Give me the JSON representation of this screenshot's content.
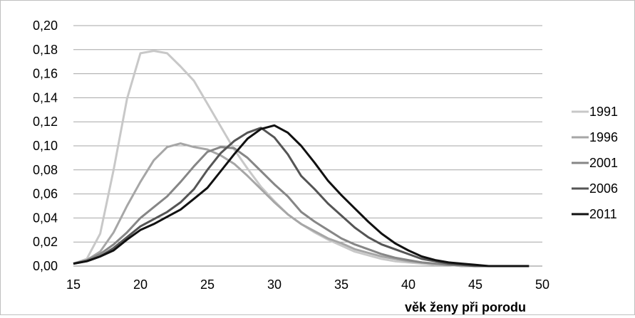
{
  "chart_data": {
    "type": "line",
    "title": "",
    "xlabel": "věk ženy při porodu",
    "ylabel": "",
    "xlim": [
      15,
      50
    ],
    "ylim": [
      0,
      0.2
    ],
    "x_ticks": [
      15,
      20,
      25,
      30,
      35,
      40,
      45,
      50
    ],
    "y_ticks": [
      0,
      0.02,
      0.04,
      0.06,
      0.08,
      0.1,
      0.12,
      0.14,
      0.16,
      0.18,
      0.2
    ],
    "x_tick_labels": [
      "15",
      "20",
      "25",
      "30",
      "35",
      "40",
      "45",
      "50"
    ],
    "y_tick_labels": [
      "0,00",
      "0,02",
      "0,04",
      "0,06",
      "0,08",
      "0,10",
      "0,12",
      "0,14",
      "0,16",
      "0,18",
      "0,20"
    ],
    "grid": "horizontal",
    "legend_position": "right",
    "x": [
      15,
      16,
      17,
      18,
      19,
      20,
      21,
      22,
      23,
      24,
      25,
      26,
      27,
      28,
      29,
      30,
      31,
      32,
      33,
      34,
      35,
      36,
      37,
      38,
      39,
      40,
      41,
      42,
      43,
      44,
      45,
      46,
      47,
      48,
      49
    ],
    "series": [
      {
        "name": "1991",
        "color": "#c8c8c8",
        "values": [
          0.002,
          0.006,
          0.027,
          0.08,
          0.139,
          0.177,
          0.179,
          0.177,
          0.166,
          0.154,
          0.135,
          0.116,
          0.097,
          0.081,
          0.066,
          0.054,
          0.043,
          0.035,
          0.028,
          0.022,
          0.017,
          0.012,
          0.009,
          0.006,
          0.004,
          0.003,
          0.002,
          0.001,
          0.001,
          0,
          0,
          0,
          0,
          0,
          0
        ]
      },
      {
        "name": "1996",
        "color": "#a6a6a6",
        "values": [
          0.002,
          0.005,
          0.012,
          0.028,
          0.05,
          0.07,
          0.088,
          0.099,
          0.102,
          0.099,
          0.097,
          0.092,
          0.085,
          0.075,
          0.064,
          0.053,
          0.043,
          0.035,
          0.029,
          0.023,
          0.019,
          0.014,
          0.011,
          0.008,
          0.006,
          0.004,
          0.003,
          0.002,
          0.001,
          0,
          0,
          0,
          0,
          0,
          0
        ]
      },
      {
        "name": "2001",
        "color": "#868686",
        "values": [
          0.002,
          0.005,
          0.01,
          0.018,
          0.028,
          0.04,
          0.049,
          0.058,
          0.07,
          0.083,
          0.095,
          0.099,
          0.098,
          0.09,
          0.079,
          0.068,
          0.058,
          0.045,
          0.037,
          0.03,
          0.023,
          0.018,
          0.014,
          0.01,
          0.007,
          0.005,
          0.003,
          0.002,
          0.001,
          0.001,
          0,
          0,
          0,
          0,
          0
        ]
      },
      {
        "name": "2006",
        "color": "#555555",
        "values": [
          0.002,
          0.004,
          0.008,
          0.015,
          0.024,
          0.033,
          0.039,
          0.045,
          0.053,
          0.064,
          0.08,
          0.094,
          0.104,
          0.111,
          0.115,
          0.107,
          0.093,
          0.075,
          0.064,
          0.052,
          0.042,
          0.032,
          0.024,
          0.018,
          0.014,
          0.01,
          0.006,
          0.004,
          0.002,
          0.001,
          0,
          0,
          0,
          0,
          0
        ]
      },
      {
        "name": "2011",
        "color": "#111111",
        "values": [
          0.002,
          0.004,
          0.008,
          0.013,
          0.022,
          0.03,
          0.035,
          0.041,
          0.047,
          0.056,
          0.065,
          0.079,
          0.093,
          0.106,
          0.114,
          0.117,
          0.111,
          0.1,
          0.086,
          0.071,
          0.059,
          0.048,
          0.037,
          0.027,
          0.019,
          0.013,
          0.008,
          0.005,
          0.003,
          0.002,
          0.001,
          0,
          0,
          0,
          0
        ]
      }
    ]
  }
}
